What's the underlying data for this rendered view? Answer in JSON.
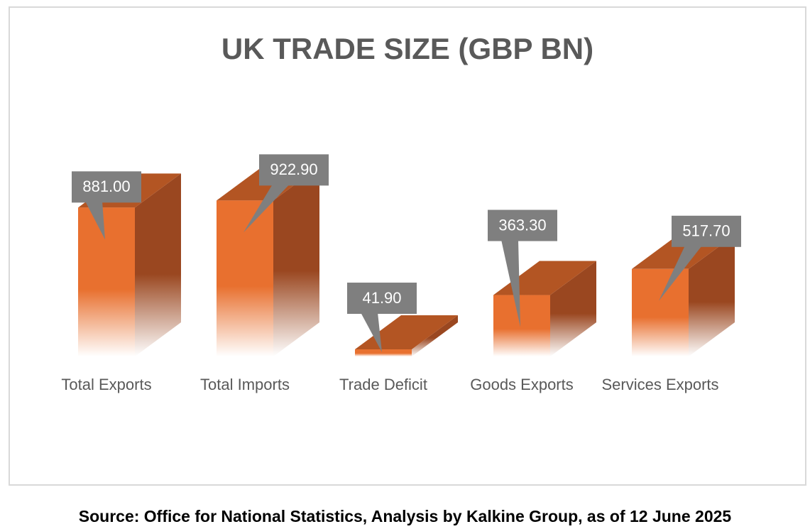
{
  "chart_data": {
    "type": "bar3d",
    "title": "UK TRADE SIZE (GBP BN)",
    "categories": [
      "Total Exports",
      "Total Imports",
      "Trade Deficit",
      "Goods Exports",
      "Services Exports"
    ],
    "values": [
      881,
      922.9,
      41.9,
      363.3,
      517.7
    ],
    "value_labels": [
      "881.00",
      "922.90",
      "41.90",
      "363.30",
      "517.70"
    ],
    "color": "#e8702f",
    "source": "Source: Office for National Statistics, Analysis by Kalkine Group, as of 12 June 2025"
  }
}
